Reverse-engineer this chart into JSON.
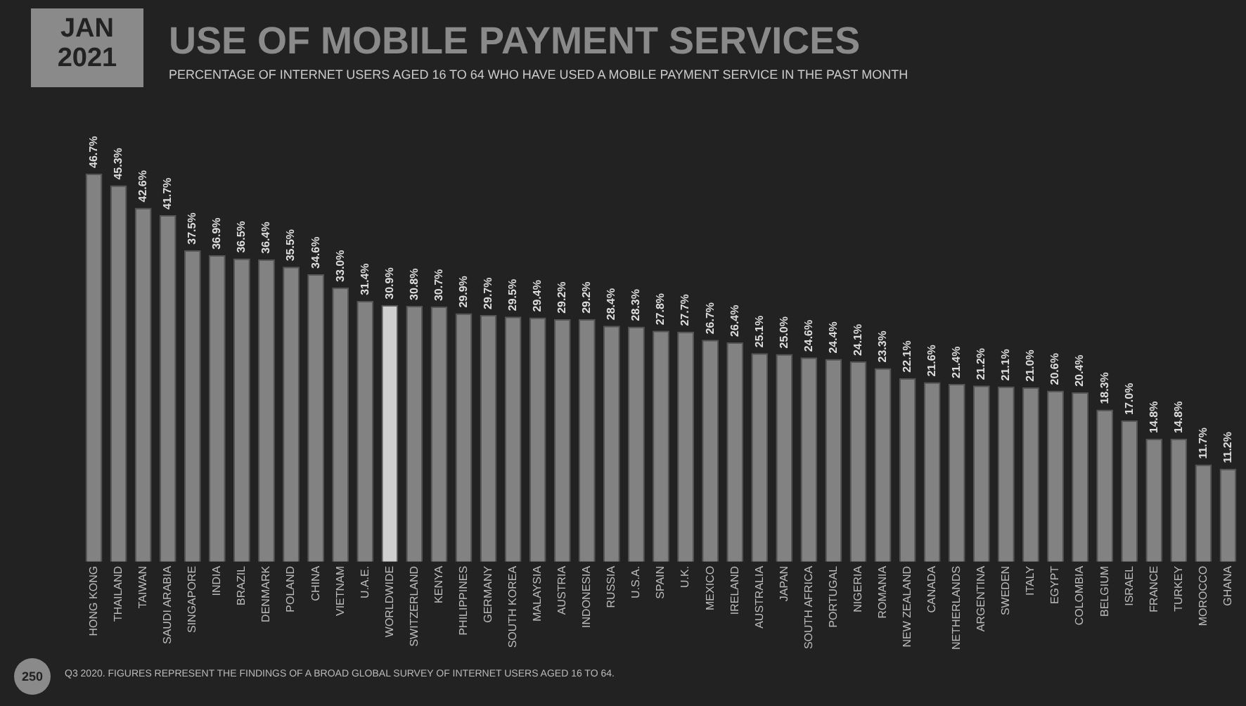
{
  "chart_data": {
    "type": "bar",
    "title": "USE OF MOBILE PAYMENT SERVICES",
    "subtitle": "PERCENTAGE OF INTERNET USERS AGED 16 TO 64 WHO HAVE USED A MOBILE PAYMENT SERVICE IN THE PAST MONTH",
    "annotations": [
      "JAN 2021",
      "250",
      "Q3 2020. FIGURES REPRESENT THE FINDINGS OF A BROAD GLOBAL SURVEY OF INTERNET USERS AGED 16 TO 64."
    ],
    "categories": [
      "HONG KONG",
      "THAILAND",
      "TAIWAN",
      "SAUDI ARABIA",
      "SINGAPORE",
      "INDIA",
      "BRAZIL",
      "DENMARK",
      "POLAND",
      "CHINA",
      "VIETNAM",
      "U.A.E.",
      "WORLDWIDE",
      "SWITZERLAND",
      "KENYA",
      "PHILIPPINES",
      "GERMANY",
      "SOUTH KOREA",
      "MALAYSIA",
      "AUSTRIA",
      "INDONESIA",
      "RUSSIA",
      "U.S.A.",
      "SPAIN",
      "U.K.",
      "MEXICO",
      "IRELAND",
      "AUSTRALIA",
      "JAPAN",
      "SOUTH AFRICA",
      "PORTUGAL",
      "NIGERIA",
      "ROMANIA",
      "NEW ZEALAND",
      "CANADA",
      "NETHERLANDS",
      "ARGENTINA",
      "SWEDEN",
      "ITALY",
      "EGYPT",
      "COLOMBIA",
      "BELGIUM",
      "ISRAEL",
      "FRANCE",
      "TURKEY",
      "MOROCCO",
      "GHANA"
    ],
    "values": [
      46.7,
      45.3,
      42.6,
      41.7,
      37.5,
      36.9,
      36.5,
      36.4,
      35.5,
      34.6,
      33.0,
      31.4,
      30.9,
      30.8,
      30.7,
      29.9,
      29.7,
      29.5,
      29.4,
      29.2,
      29.2,
      28.4,
      28.3,
      27.8,
      27.7,
      26.7,
      26.4,
      25.1,
      25.0,
      24.6,
      24.4,
      24.1,
      23.3,
      22.1,
      21.6,
      21.4,
      21.2,
      21.1,
      21.0,
      20.6,
      20.4,
      18.3,
      17.0,
      14.8,
      14.8,
      11.7,
      11.2
    ],
    "value_labels": [
      "46.7%",
      "45.3%",
      "42.6%",
      "41.7%",
      "37.5%",
      "36.9%",
      "36.5%",
      "36.4%",
      "35.5%",
      "34.6%",
      "33.0%",
      "31.4%",
      "30.9%",
      "30.8%",
      "30.7%",
      "29.9%",
      "29.7%",
      "29.5%",
      "29.4%",
      "29.2%",
      "29.2%",
      "28.4%",
      "28.3%",
      "27.8%",
      "27.7%",
      "26.7%",
      "26.4%",
      "25.1%",
      "25.0%",
      "24.6%",
      "24.4%",
      "24.1%",
      "23.3%",
      "22.1%",
      "21.6%",
      "21.4%",
      "21.2%",
      "21.1%",
      "21.0%",
      "20.6%",
      "20.4%",
      "18.3%",
      "17.0%",
      "14.8%",
      "14.8%",
      "11.7%",
      "11.2%"
    ],
    "colors": [
      "#828282",
      "#828282",
      "#828282",
      "#828282",
      "#828282",
      "#828282",
      "#828282",
      "#828282",
      "#828282",
      "#828282",
      "#828282",
      "#828282",
      "#cfcfcf",
      "#828282",
      "#828282",
      "#828282",
      "#828282",
      "#828282",
      "#828282",
      "#828282",
      "#828282",
      "#828282",
      "#828282",
      "#828282",
      "#828282",
      "#828282",
      "#828282",
      "#828282",
      "#828282",
      "#828282",
      "#828282",
      "#828282",
      "#828282",
      "#828282",
      "#828282",
      "#828282",
      "#828282",
      "#828282",
      "#828282",
      "#828282",
      "#828282",
      "#828282",
      "#828282",
      "#828282",
      "#828282",
      "#828282",
      "#828282"
    ],
    "relative": false,
    "grid": false,
    "legend": false
  }
}
